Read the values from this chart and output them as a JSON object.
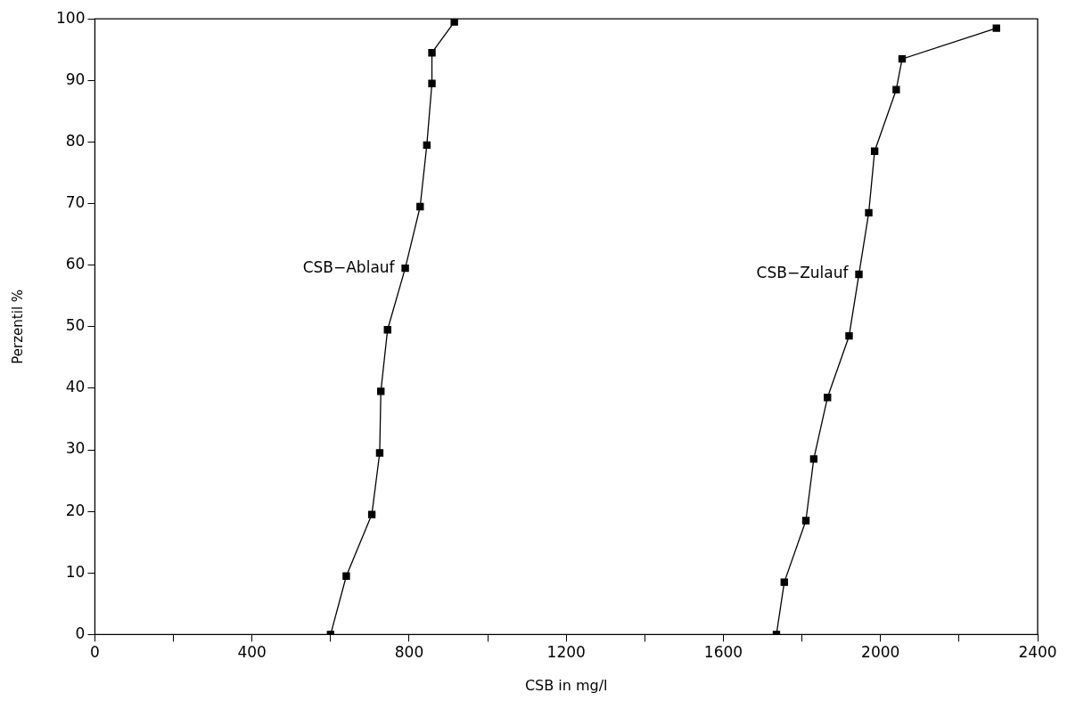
{
  "chart_data": {
    "type": "line",
    "xlabel": "CSB in mg/l",
    "ylabel": "Perzentil %",
    "xlim": [
      0,
      2400
    ],
    "xticks": [
      0,
      {
        "value": 200,
        "label": null
      },
      400,
      {
        "value": 600,
        "label": null
      },
      800,
      {
        "value": 1000,
        "label": null
      },
      1200,
      {
        "value": 1400,
        "label": null
      },
      1600,
      {
        "value": 1800,
        "label": null
      },
      2000,
      {
        "value": 2200,
        "label": null
      },
      2400
    ],
    "ylim": [
      0,
      100
    ],
    "yticks": [
      0,
      10,
      20,
      30,
      40,
      50,
      60,
      70,
      80,
      90,
      100
    ],
    "grid": false,
    "legend": false,
    "marker": "square",
    "line_style": "solid",
    "series": [
      {
        "name": "CSB−Ablauf",
        "color": "#000000",
        "x": [
          600,
          640,
          705,
          725,
          728,
          745,
          790,
          828,
          845,
          858,
          858,
          915
        ],
        "values": [
          0,
          9.5,
          19.5,
          29.5,
          39.5,
          49.5,
          59.5,
          69.5,
          79.5,
          89.5,
          94.5,
          99.5
        ]
      },
      {
        "name": "CSB−Zulauf",
        "color": "#000000",
        "x": [
          1735,
          1755,
          1810,
          1830,
          1865,
          1920,
          1945,
          1970,
          1985,
          2040,
          2055,
          2295
        ],
        "values": [
          0,
          8.5,
          18.5,
          28.5,
          38.5,
          48.5,
          58.5,
          68.5,
          78.5,
          88.5,
          93.5,
          98.5
        ]
      }
    ]
  }
}
